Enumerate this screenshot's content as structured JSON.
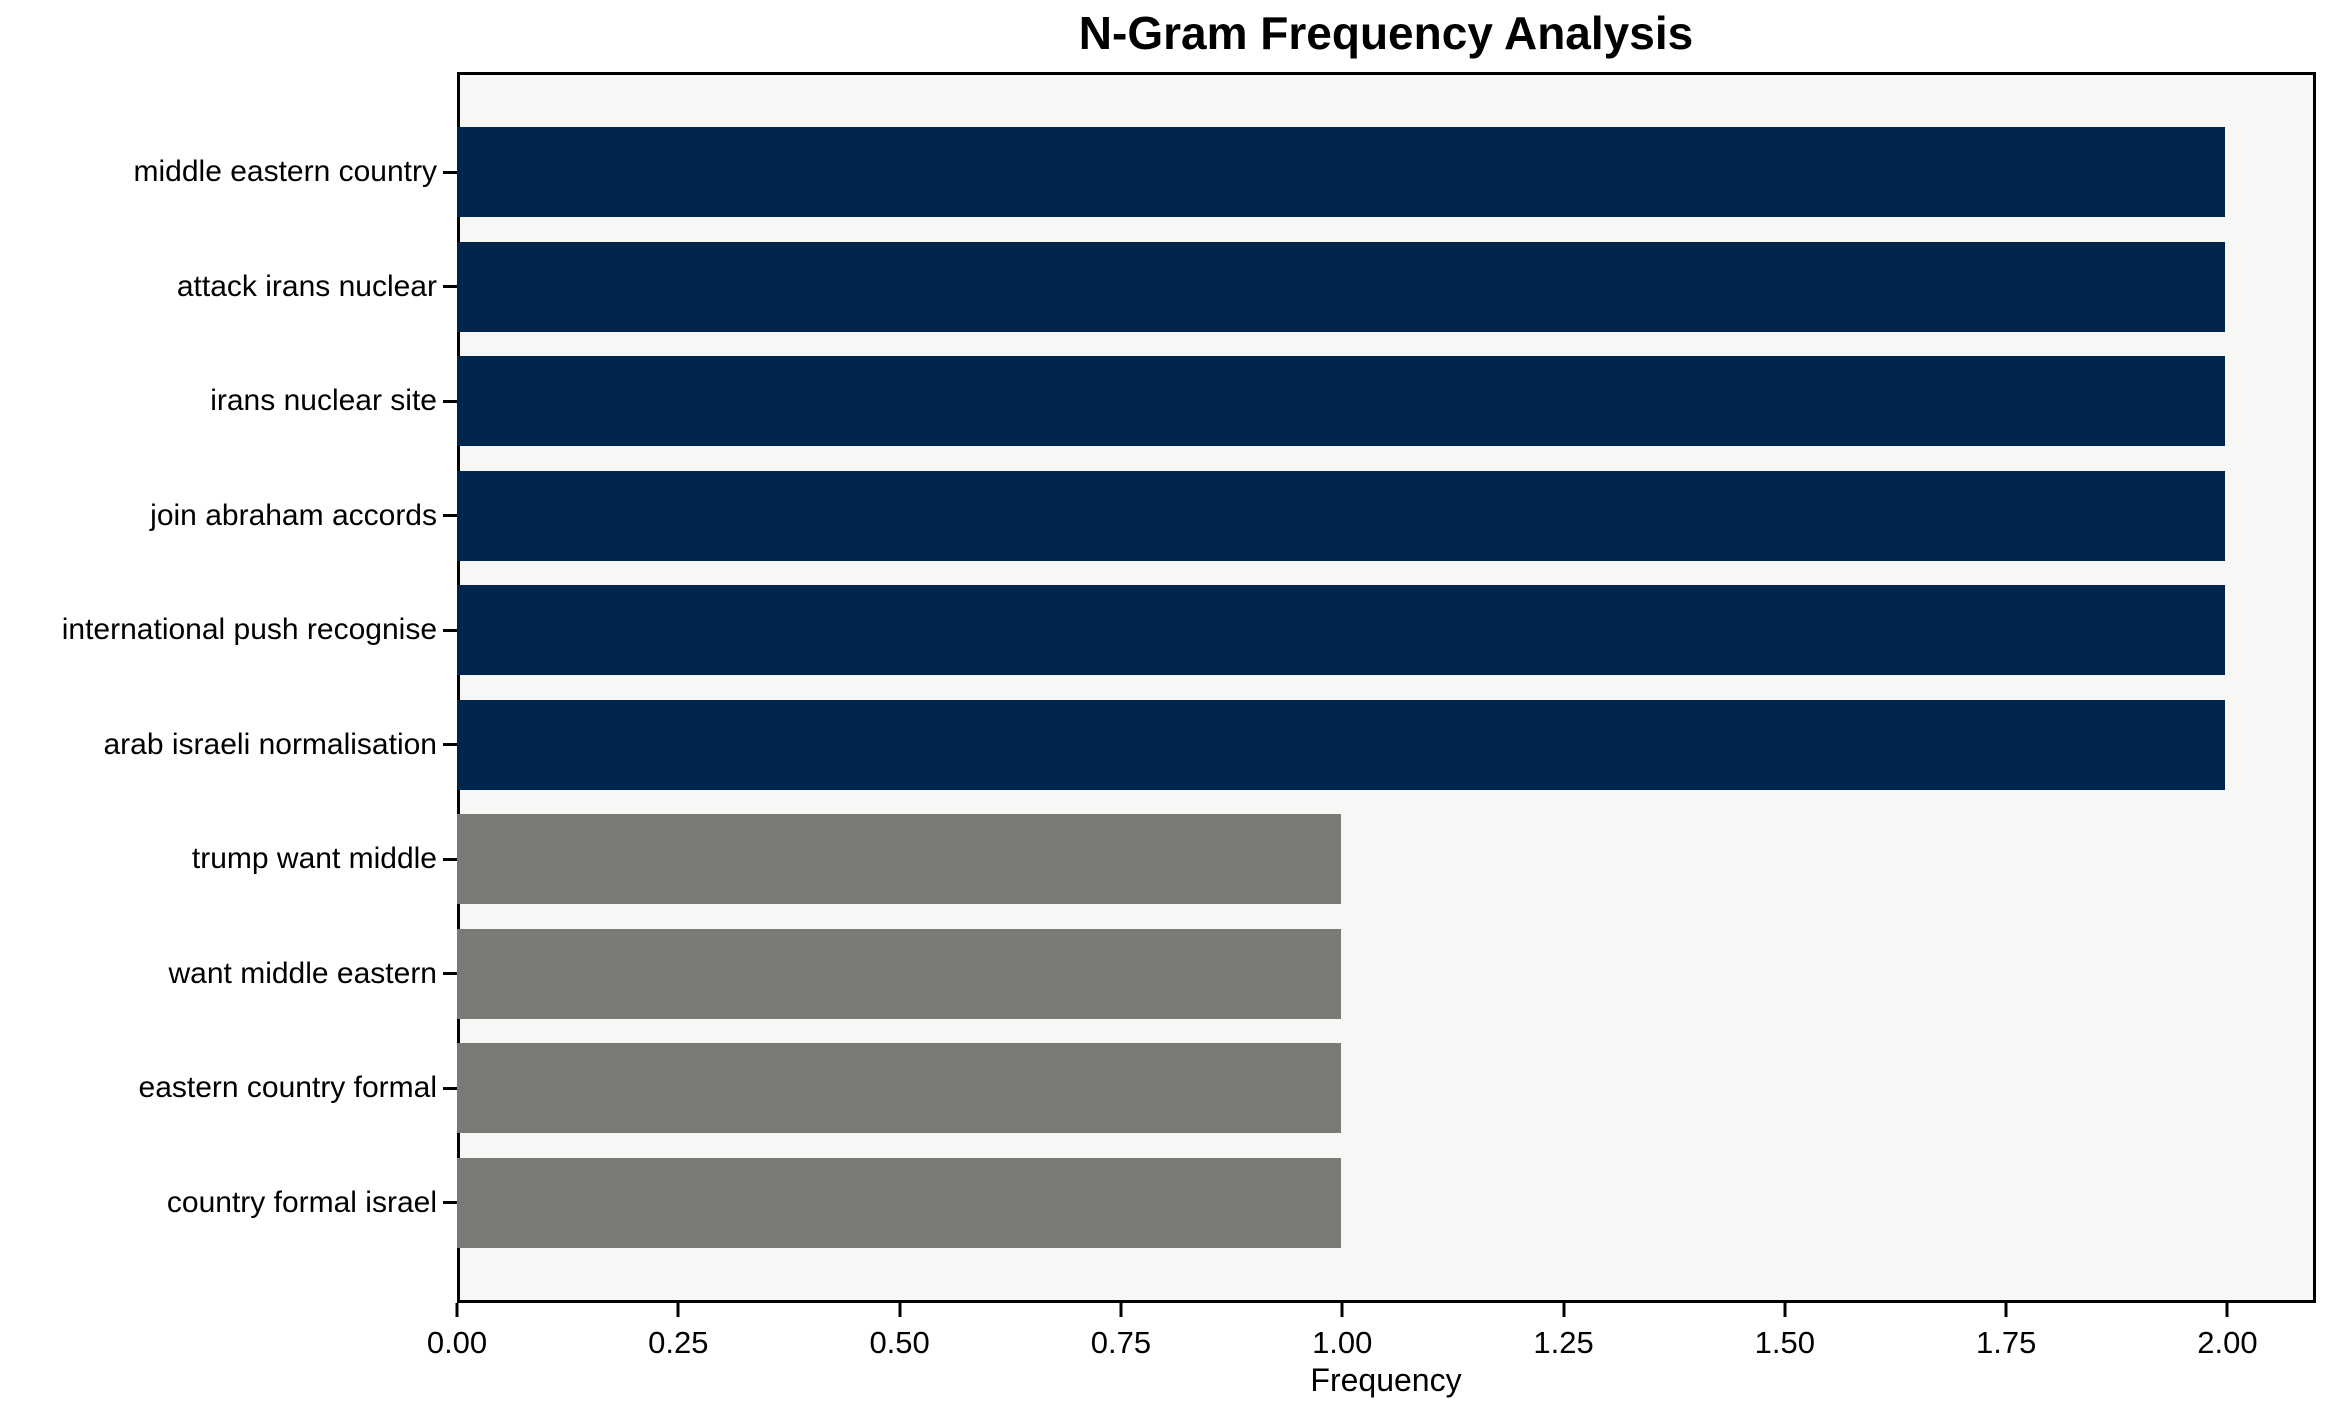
{
  "page": {
    "background": "#ffffff"
  },
  "chart_data": {
    "type": "bar",
    "orientation": "horizontal",
    "title": "N-Gram Frequency Analysis",
    "xlabel": "Frequency",
    "ylabel": "",
    "categories": [
      "middle eastern country",
      "attack irans nuclear",
      "irans nuclear site",
      "join abraham accords",
      "international push recognise",
      "arab israeli normalisation",
      "trump want middle",
      "want middle eastern",
      "eastern country formal",
      "country formal israel"
    ],
    "values": [
      2,
      2,
      2,
      2,
      2,
      2,
      1,
      1,
      1,
      1
    ],
    "bar_colors": [
      "#00254d",
      "#00254d",
      "#00254d",
      "#00254d",
      "#00254d",
      "#00254d",
      "#7b7a77",
      "#7b7a77",
      "#7b7a77",
      "#7b7a77"
    ],
    "xlim": [
      0,
      2.1
    ],
    "x_ticks": [
      0,
      0.25,
      0.5,
      0.75,
      1.0,
      1.25,
      1.5,
      1.75,
      2.0
    ],
    "x_tick_labels": [
      "0.00",
      "0.25",
      "0.50",
      "0.75",
      "1.00",
      "1.25",
      "1.50",
      "1.75",
      "2.00"
    ],
    "grid": false,
    "legend": null,
    "plot_background": "#f7f7f6",
    "colors": {
      "navy_bar": "#00254d",
      "gray_bar": "#7b7a77",
      "spine": "#000000",
      "text": "#000000"
    }
  }
}
